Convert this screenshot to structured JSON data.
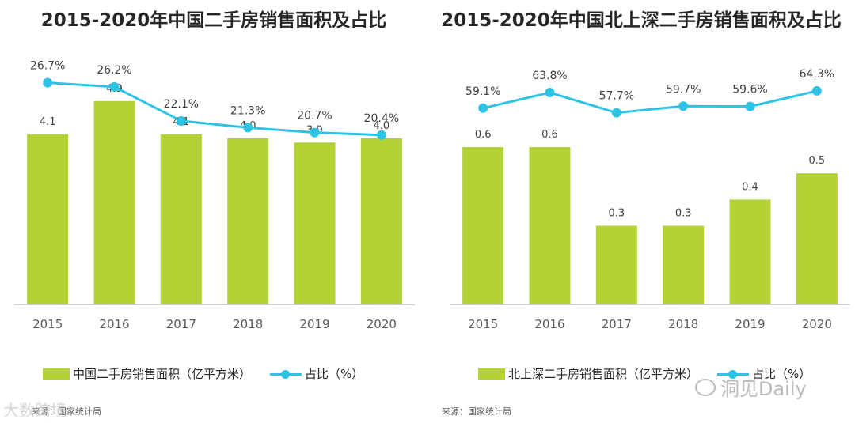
{
  "colors": {
    "bar": "#B3D235",
    "line": "#2CC3E5",
    "axis": "#BFBFBF",
    "text": "#404040"
  },
  "watermarks": {
    "left": "大数跨境",
    "right": "洞见Daily"
  },
  "chart_data": [
    {
      "type": "bar",
      "title": "2015-2020年中国二手房销售面积及占比",
      "categories": [
        "2015",
        "2016",
        "2017",
        "2018",
        "2019",
        "2020"
      ],
      "series": [
        {
          "name": "中国二手房销售面积（亿平方米）",
          "values": [
            4.1,
            4.9,
            4.1,
            4.0,
            3.9,
            4.0
          ],
          "labels": [
            "4.1",
            "4.9",
            "4.1",
            "4.0",
            "3.9",
            "4.0"
          ]
        },
        {
          "name": "占比（%）",
          "type": "line",
          "values": [
            26.7,
            26.2,
            22.1,
            21.3,
            20.7,
            20.4
          ],
          "labels": [
            "26.7%",
            "26.2%",
            "22.1%",
            "21.3%",
            "20.7%",
            "20.4%"
          ]
        }
      ],
      "legend": {
        "bar": "中国二手房销售面积（亿平方米）",
        "line": "占比（%）"
      },
      "ylim_bar": [
        0,
        6
      ],
      "ylim_line": [
        0,
        30
      ],
      "source": "来源：国家统计局"
    },
    {
      "type": "bar",
      "title": "2015-2020年中国北上深二手房销售面积及占比",
      "categories": [
        "2015",
        "2016",
        "2017",
        "2018",
        "2019",
        "2020"
      ],
      "series": [
        {
          "name": "北上深二手房销售面积（亿平方米）",
          "values": [
            0.6,
            0.6,
            0.3,
            0.3,
            0.4,
            0.5
          ],
          "labels": [
            "0.6",
            "0.6",
            "0.3",
            "0.3",
            "0.4",
            "0.5"
          ]
        },
        {
          "name": "占比（%）",
          "type": "line",
          "values": [
            59.1,
            63.8,
            57.7,
            59.7,
            59.6,
            64.3
          ],
          "labels": [
            "59.1%",
            "63.8%",
            "57.7%",
            "59.7%",
            "59.6%",
            "64.3%"
          ]
        }
      ],
      "legend": {
        "bar": "北上深二手房销售面积（亿平方米）",
        "line": "占比（%）"
      },
      "ylim_bar": [
        0,
        0.95
      ],
      "ylim_line": [
        0,
        75
      ],
      "source": "来源：国家统计局"
    }
  ]
}
